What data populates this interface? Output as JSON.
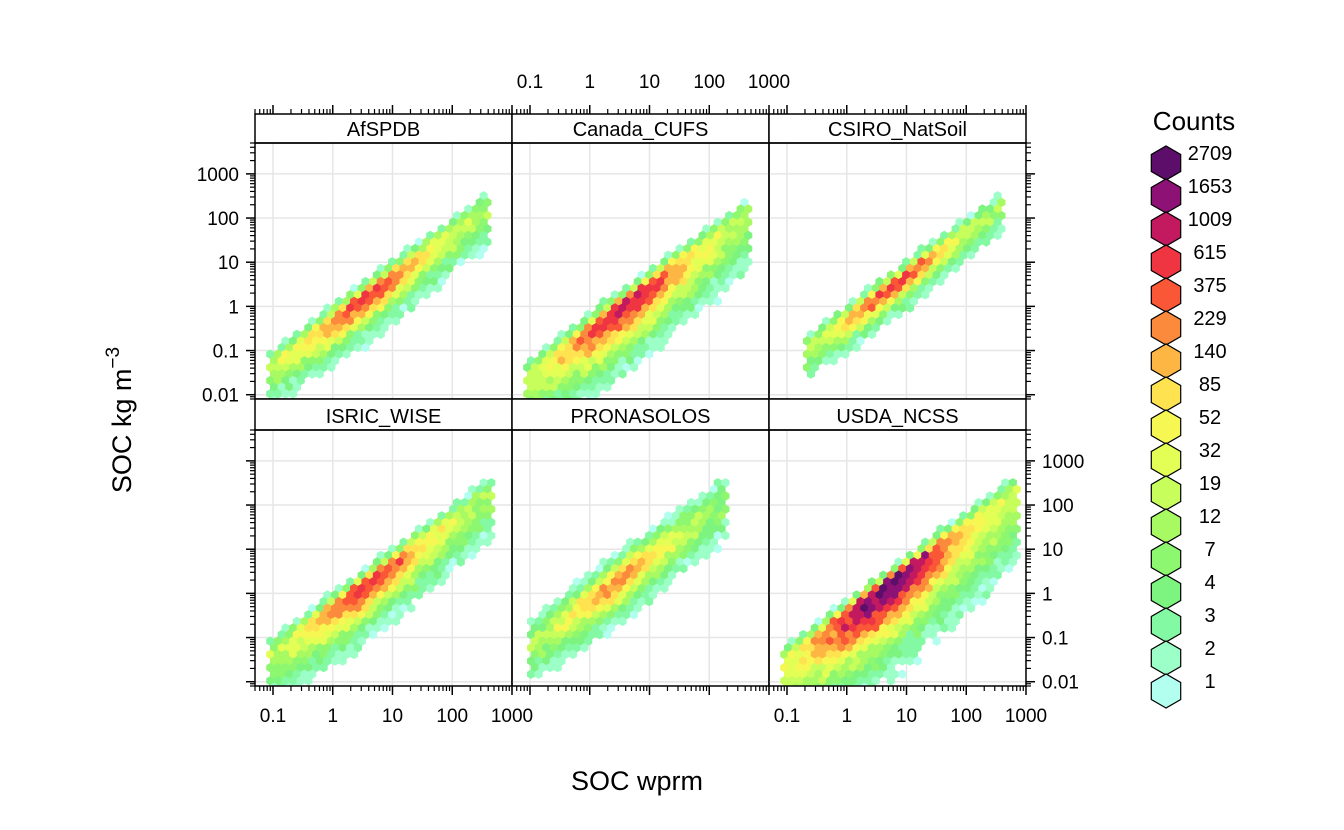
{
  "chart_data": {
    "type": "heatmap",
    "subtype": "hexbin-panels",
    "xlabel": "SOC wprm",
    "ylabel": "SOC kg m",
    "ylabel_superscript": "−3",
    "x_scale": "log10",
    "y_scale": "log10",
    "xlim": [
      0.05,
      1000
    ],
    "ylim": [
      0.008,
      5000
    ],
    "x_tick_labels": [
      "0.1",
      "1",
      "10",
      "100",
      "1000"
    ],
    "y_tick_labels": [
      "0.01",
      "0.1",
      "1",
      "10",
      "100",
      "1000"
    ],
    "grid": true,
    "legend": {
      "title": "Counts",
      "placement": "right",
      "labels": [
        "2709",
        "1653",
        "1009",
        "615",
        "375",
        "229",
        "140",
        "85",
        "52",
        "32",
        "19",
        "12",
        "7",
        "4",
        "3",
        "2",
        "1"
      ],
      "colors": [
        "#5C0E6A",
        "#8E1276",
        "#C2195F",
        "#EF3442",
        "#FA5736",
        "#FB8A3C",
        "#FDB643",
        "#FEE24F",
        "#F6F752",
        "#E3FE54",
        "#C8FE5C",
        "#A8FA63",
        "#8DF86F",
        "#7CF47F",
        "#84F9A3",
        "#9DFFC8",
        "#B2FFF0"
      ]
    },
    "panels": [
      {
        "name": "AfSPDB",
        "x_range": [
          0.08,
          400
        ],
        "core_ratio": 2.2,
        "spread_low": 4,
        "spread_high": 1.6,
        "peak_level": 3
      },
      {
        "name": "Canada_CUFS",
        "x_range": [
          0.08,
          500
        ],
        "core_ratio": 3.5,
        "spread_low": 6,
        "spread_high": 1.6,
        "peak_level": 2
      },
      {
        "name": "CSIRO_NatSoil",
        "x_range": [
          0.2,
          400
        ],
        "core_ratio": 2.0,
        "spread_low": 3,
        "spread_high": 1.4,
        "peak_level": 3
      },
      {
        "name": "ISRIC_WISE",
        "x_range": [
          0.08,
          500
        ],
        "core_ratio": 2.2,
        "spread_low": 5,
        "spread_high": 1.5,
        "peak_level": 3
      },
      {
        "name": "PRONASOLOS",
        "x_range": [
          0.1,
          200
        ],
        "core_ratio": 1.5,
        "spread_low": 4,
        "spread_high": 2.5,
        "peak_level": 5
      },
      {
        "name": "USDA_NCSS",
        "x_range": [
          0.08,
          700
        ],
        "core_ratio": 3.0,
        "spread_low": 8,
        "spread_high": 1.4,
        "peak_level": 0
      }
    ]
  }
}
